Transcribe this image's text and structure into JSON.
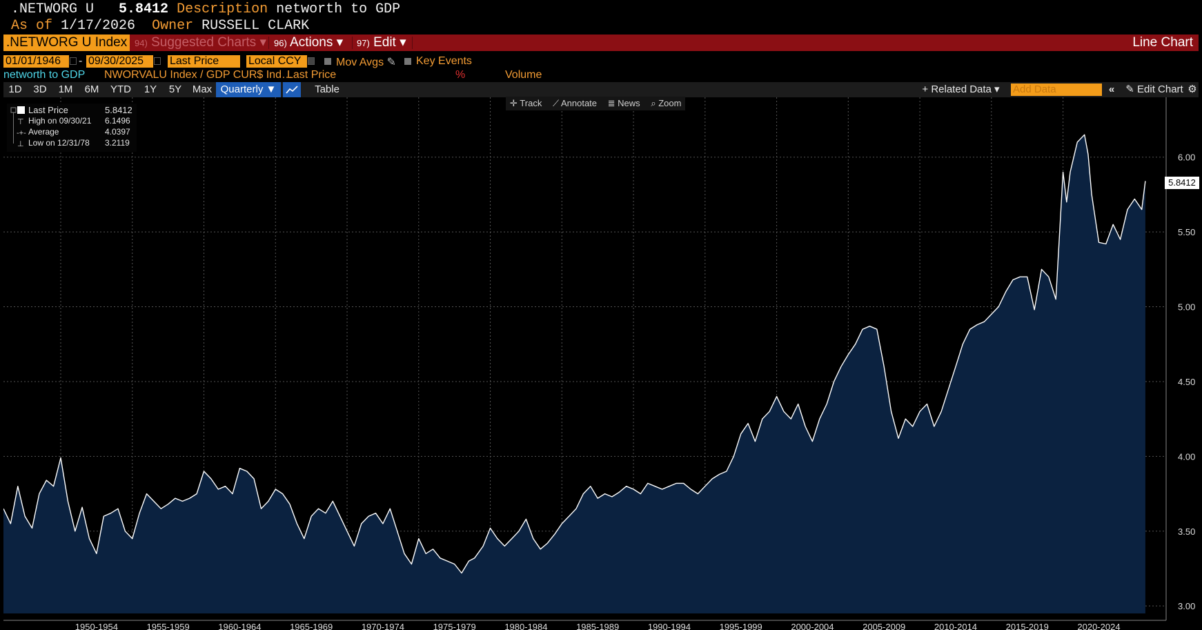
{
  "header": {
    "ticker": ".NETWORG U",
    "price": "5.8412",
    "desc_label": "Description",
    "desc_value": "networth to GDP",
    "asof_label": "As of",
    "asof_value": "1/17/2026",
    "owner_label": "Owner",
    "owner_value": "RUSSELL CLARK"
  },
  "menubar": {
    "security": ".NETWORG U Index",
    "suggested_num": "94)",
    "suggested": "Suggested Charts",
    "actions_num": "96)",
    "actions": "Actions",
    "edit_num": "97)",
    "edit": "Edit",
    "caret": "▾",
    "chart_type": "Line Chart"
  },
  "params": {
    "start_date": "01/01/1946",
    "dash": "-",
    "end_date": "09/30/2025",
    "field": "Last Price",
    "currency": "Local CCY",
    "mov_avgs": "Mov Avgs",
    "key_events": "Key Events"
  },
  "legend_row": {
    "name": "networth to GDP",
    "formula": "NWORVALU Index / GDP CUR$ Ind…",
    "last_price": "Last Price",
    "pct": "%",
    "volume": "Volume"
  },
  "toolbar": {
    "periods": [
      "1D",
      "3D",
      "1M",
      "6M",
      "YTD",
      "1Y",
      "5Y",
      "Max"
    ],
    "frequency": "Quarterly ▼",
    "table": "Table",
    "related": "+ Related Data ▾",
    "add_data": "Add Data",
    "collapse": "«",
    "edit_chart": "✎ Edit Chart",
    "settings": "⚙"
  },
  "chart_tools": {
    "track": "Track",
    "annotate": "Annotate",
    "news": "News",
    "zoom": "Zoom"
  },
  "stats_box": {
    "last_label": "Last Price",
    "last_value": "5.8412",
    "high_label": "High on 09/30/21",
    "high_value": "6.1496",
    "avg_label": "Average",
    "avg_value": "4.0397",
    "low_label": "Low on 12/31/78",
    "low_value": "3.2119"
  },
  "colors": {
    "line": "#ffffff",
    "fill": "#0b2240",
    "accent": "#f39c1a",
    "menubar": "#8b0f14"
  },
  "chart_data": {
    "type": "area",
    "x_label_format": "year ranges",
    "categories": [
      "1950-1954",
      "1955-1959",
      "1960-1964",
      "1965-1969",
      "1970-1974",
      "1975-1979",
      "1980-1984",
      "1985-1989",
      "1990-1994",
      "1995-1999",
      "2000-2004",
      "2005-2009",
      "2010-2014",
      "2015-2019",
      "2020-2024"
    ],
    "ylim": [
      2.95,
      6.4
    ],
    "yticks": [
      "3.00",
      "3.50",
      "4.00",
      "4.50",
      "5.00",
      "5.50",
      "6.00"
    ],
    "y_side": "right",
    "grid": true,
    "last_value_label": "5.8412",
    "series": [
      {
        "name": "networth to GDP",
        "x": [
          1946.0,
          1946.5,
          1947.0,
          1947.5,
          1948.0,
          1948.5,
          1949.0,
          1949.5,
          1950.0,
          1950.5,
          1951.0,
          1951.5,
          1952.0,
          1952.5,
          1953.0,
          1953.5,
          1954.0,
          1954.5,
          1955.0,
          1955.5,
          1956.0,
          1956.5,
          1957.0,
          1957.5,
          1958.0,
          1958.5,
          1959.0,
          1959.5,
          1960.0,
          1960.5,
          1961.0,
          1961.5,
          1962.0,
          1962.5,
          1963.0,
          1963.5,
          1964.0,
          1964.5,
          1965.0,
          1965.5,
          1966.0,
          1966.5,
          1967.0,
          1967.5,
          1968.0,
          1968.5,
          1969.0,
          1969.5,
          1970.0,
          1970.5,
          1971.0,
          1971.5,
          1972.0,
          1972.5,
          1973.0,
          1973.5,
          1974.0,
          1974.5,
          1975.0,
          1975.5,
          1976.0,
          1976.5,
          1977.0,
          1977.5,
          1978.0,
          1978.5,
          1978.9,
          1979.5,
          1980.0,
          1980.5,
          1981.0,
          1981.5,
          1982.0,
          1982.5,
          1983.0,
          1983.5,
          1984.0,
          1984.5,
          1985.0,
          1985.5,
          1986.0,
          1986.5,
          1987.0,
          1987.5,
          1988.0,
          1988.5,
          1989.0,
          1989.5,
          1990.0,
          1990.5,
          1991.0,
          1991.5,
          1992.0,
          1992.5,
          1993.0,
          1993.5,
          1994.0,
          1994.5,
          1995.0,
          1995.5,
          1996.0,
          1996.5,
          1997.0,
          1997.5,
          1998.0,
          1998.5,
          1999.0,
          1999.5,
          2000.0,
          2000.5,
          2001.0,
          2001.5,
          2002.0,
          2002.5,
          2003.0,
          2003.5,
          2004.0,
          2004.5,
          2005.0,
          2005.5,
          2006.0,
          2006.5,
          2007.0,
          2007.5,
          2008.0,
          2008.5,
          2009.0,
          2009.5,
          2010.0,
          2010.5,
          2011.0,
          2011.5,
          2012.0,
          2012.5,
          2013.0,
          2013.5,
          2014.0,
          2014.5,
          2015.0,
          2015.5,
          2016.0,
          2016.5,
          2017.0,
          2017.5,
          2018.0,
          2018.5,
          2019.0,
          2019.5,
          2020.0,
          2020.25,
          2020.5,
          2021.0,
          2021.5,
          2021.75,
          2022.0,
          2022.5,
          2023.0,
          2023.5,
          2024.0,
          2024.5,
          2025.0,
          2025.5,
          2025.75
        ],
        "values": [
          3.65,
          3.55,
          3.8,
          3.6,
          3.52,
          3.75,
          3.84,
          3.8,
          3.99,
          3.7,
          3.5,
          3.66,
          3.45,
          3.35,
          3.6,
          3.62,
          3.65,
          3.5,
          3.45,
          3.62,
          3.75,
          3.7,
          3.65,
          3.68,
          3.72,
          3.7,
          3.72,
          3.75,
          3.9,
          3.85,
          3.78,
          3.8,
          3.75,
          3.92,
          3.9,
          3.85,
          3.65,
          3.7,
          3.78,
          3.75,
          3.68,
          3.55,
          3.45,
          3.6,
          3.65,
          3.62,
          3.7,
          3.6,
          3.5,
          3.4,
          3.55,
          3.6,
          3.62,
          3.55,
          3.65,
          3.5,
          3.35,
          3.28,
          3.45,
          3.35,
          3.38,
          3.32,
          3.3,
          3.28,
          3.22,
          3.3,
          3.32,
          3.4,
          3.52,
          3.45,
          3.4,
          3.45,
          3.5,
          3.58,
          3.45,
          3.38,
          3.42,
          3.48,
          3.55,
          3.6,
          3.65,
          3.75,
          3.8,
          3.72,
          3.75,
          3.73,
          3.76,
          3.8,
          3.78,
          3.75,
          3.82,
          3.8,
          3.78,
          3.8,
          3.82,
          3.82,
          3.78,
          3.75,
          3.8,
          3.85,
          3.88,
          3.9,
          4.0,
          4.15,
          4.22,
          4.1,
          4.25,
          4.3,
          4.4,
          4.3,
          4.25,
          4.35,
          4.2,
          4.1,
          4.25,
          4.35,
          4.5,
          4.6,
          4.68,
          4.75,
          4.85,
          4.87,
          4.85,
          4.6,
          4.3,
          4.12,
          4.25,
          4.2,
          4.3,
          4.35,
          4.2,
          4.3,
          4.45,
          4.6,
          4.75,
          4.85,
          4.88,
          4.9,
          4.95,
          5.0,
          5.1,
          5.18,
          5.2,
          5.2,
          4.98,
          5.25,
          5.2,
          5.05,
          5.9,
          5.7,
          5.9,
          6.1,
          6.15,
          6.02,
          5.75,
          5.43,
          5.42,
          5.55,
          5.45,
          5.65,
          5.72,
          5.65,
          5.84
        ]
      }
    ]
  }
}
